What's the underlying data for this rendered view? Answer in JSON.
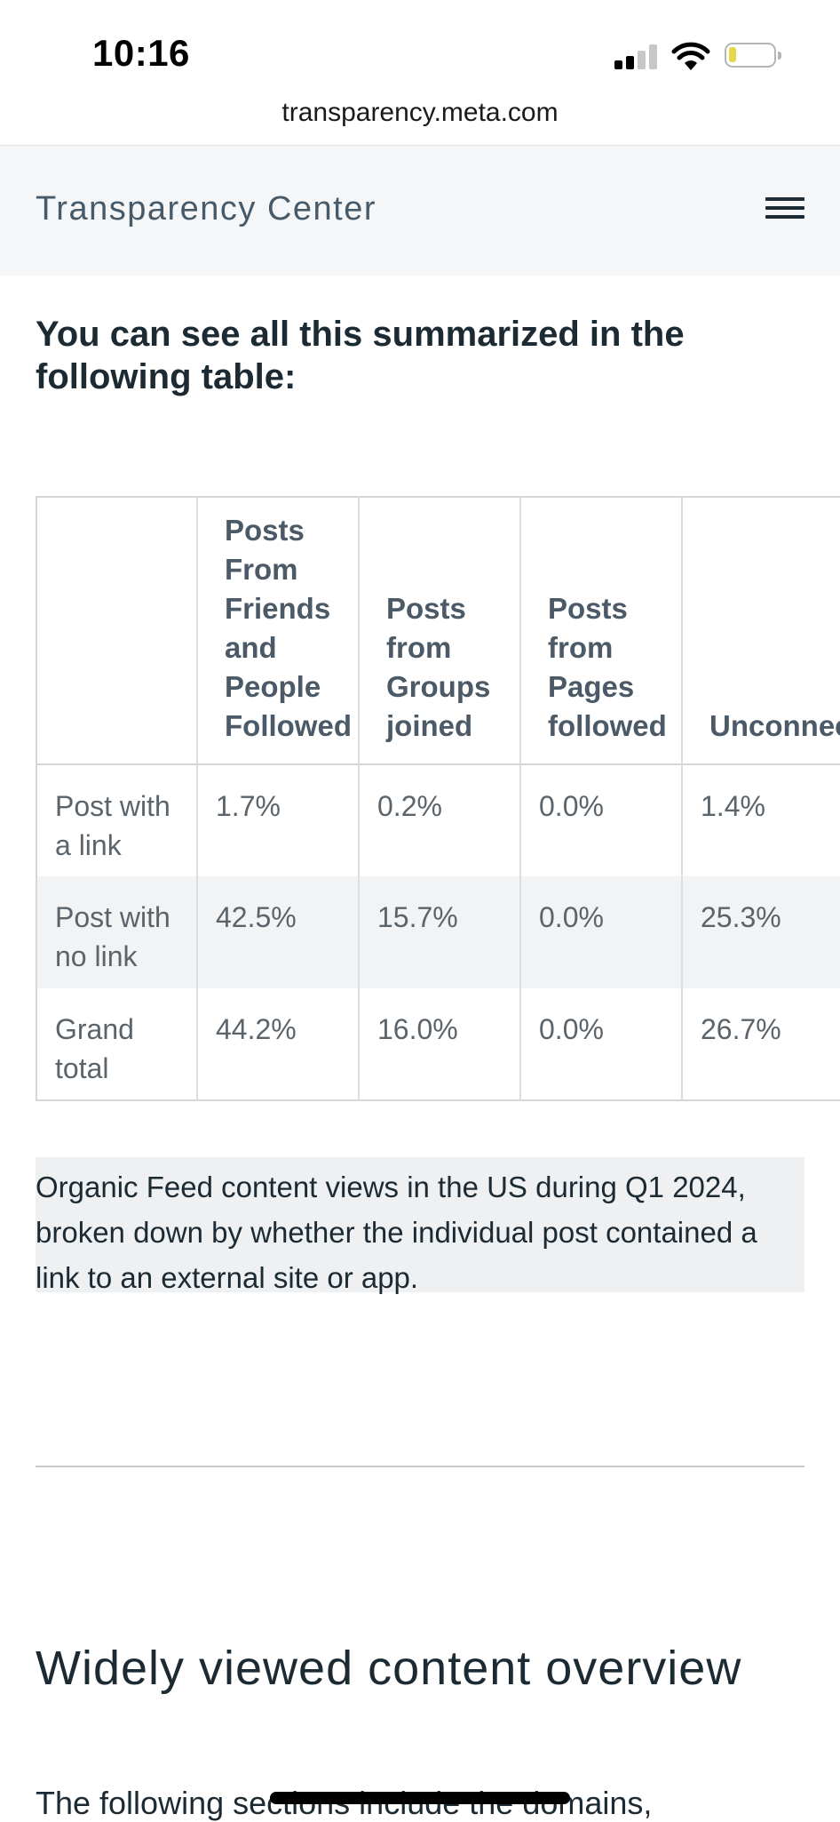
{
  "status_bar": {
    "time": "10:16"
  },
  "browser": {
    "url": "transparency.meta.com"
  },
  "nav": {
    "brand": "Transparency Center",
    "menu_icon": "hamburger-menu-icon"
  },
  "content": {
    "intro": "You can see all this summarized in the following table:",
    "table": {
      "headers": [
        "",
        "Posts From Friends and People Followed",
        "Posts from Groups joined",
        "Posts from Pages followed",
        "Unconnected Posts"
      ],
      "rows": [
        {
          "label": "Post with a link",
          "values": [
            "1.7%",
            "0.2%",
            "0.0%",
            "1.4%"
          ]
        },
        {
          "label": "Post with no link",
          "values": [
            "42.5%",
            "15.7%",
            "0.0%",
            "25.3%"
          ]
        },
        {
          "label": "Grand total",
          "values": [
            "44.2%",
            "16.0%",
            "0.0%",
            "26.7%"
          ]
        }
      ]
    },
    "caption": "Organic Feed content views in the US during Q1 2024, broken down by whether the individual post contained a link to an external site or app.",
    "section_title": "Widely viewed content overview",
    "section_body": "The following sections include the domains,"
  }
}
